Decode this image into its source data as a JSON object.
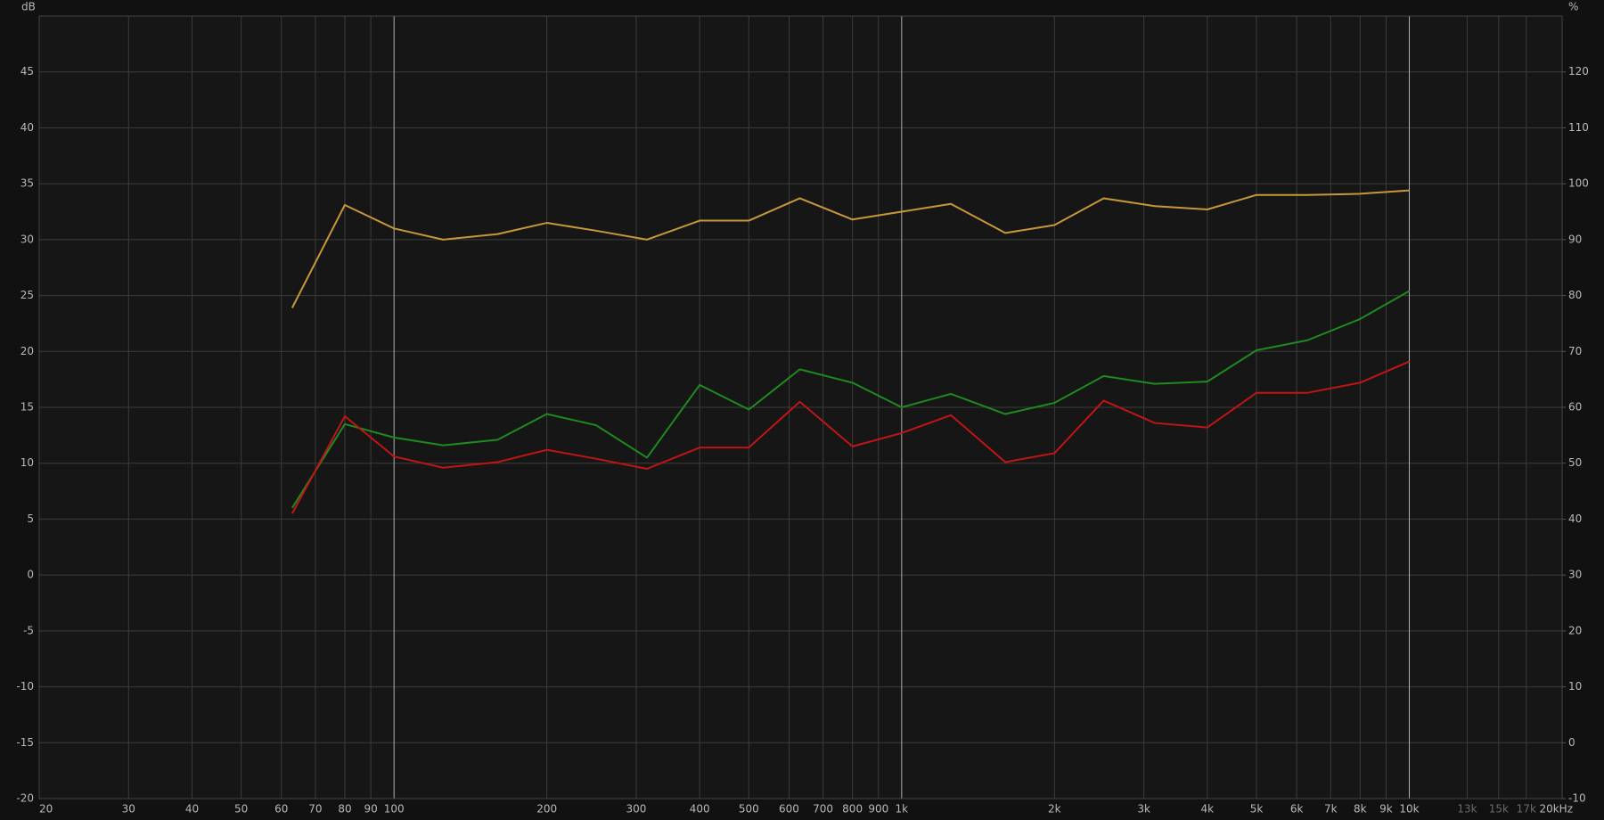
{
  "chart_data": {
    "type": "line",
    "x_scale": "log",
    "grid": true,
    "y_label": "dB",
    "y2_label": "%",
    "x": [
      63,
      80,
      100,
      125,
      160,
      200,
      250,
      315,
      400,
      500,
      630,
      800,
      1000,
      1250,
      1600,
      2000,
      2500,
      3150,
      4000,
      5000,
      6300,
      8000,
      10000
    ],
    "series": [
      {
        "color": "#c8973a",
        "values": [
          23.9,
          33.1,
          31.0,
          30.0,
          30.5,
          31.5,
          30.8,
          30.0,
          31.7,
          31.7,
          33.7,
          31.8,
          32.5,
          33.2,
          30.6,
          31.3,
          33.7,
          33.0,
          32.7,
          34.0,
          34.0,
          34.1,
          34.4
        ]
      },
      {
        "color": "#1f8a1f",
        "values": [
          6.0,
          13.5,
          12.3,
          11.6,
          12.1,
          14.4,
          13.4,
          10.5,
          17.0,
          14.8,
          18.4,
          17.2,
          15.0,
          16.2,
          14.4,
          15.4,
          17.8,
          17.1,
          17.3,
          20.1,
          21.0,
          22.9,
          25.4
        ]
      },
      {
        "color": "#c01515",
        "values": [
          5.5,
          14.2,
          10.6,
          9.6,
          10.1,
          11.2,
          10.4,
          9.5,
          11.4,
          11.4,
          15.5,
          11.5,
          12.7,
          14.3,
          10.1,
          10.9,
          15.6,
          13.6,
          13.2,
          16.3,
          16.3,
          17.2,
          19.1
        ]
      }
    ],
    "xlim": [
      20,
      20000
    ],
    "xticks": [
      20,
      30,
      40,
      50,
      60,
      70,
      80,
      90,
      100,
      200,
      300,
      400,
      500,
      600,
      700,
      800,
      900,
      {
        "value": 1000,
        "label": "1k"
      },
      {
        "value": 2000,
        "label": "2k"
      },
      {
        "value": 3000,
        "label": "3k"
      },
      {
        "value": 4000,
        "label": "4k"
      },
      {
        "value": 5000,
        "label": "5k"
      },
      {
        "value": 6000,
        "label": "6k"
      },
      {
        "value": 7000,
        "label": "7k"
      },
      {
        "value": 8000,
        "label": "8k"
      },
      {
        "value": 9000,
        "label": "9k"
      },
      {
        "value": 10000,
        "label": "10k"
      },
      {
        "value": 13000,
        "label": "13k"
      },
      {
        "value": 15000,
        "label": "15k"
      },
      {
        "value": 17000,
        "label": "17k"
      },
      {
        "value": 20000,
        "label": "20kHz"
      }
    ],
    "ylim": [
      -20,
      50
    ],
    "yticks": [
      -20,
      -15,
      -10,
      -5,
      0,
      5,
      10,
      15,
      20,
      25,
      30,
      35,
      40,
      45
    ],
    "y2lim": [
      -10,
      130
    ],
    "y2ticks": [
      -10,
      0,
      10,
      20,
      30,
      40,
      50,
      60,
      70,
      80,
      90,
      100,
      110,
      120
    ]
  }
}
